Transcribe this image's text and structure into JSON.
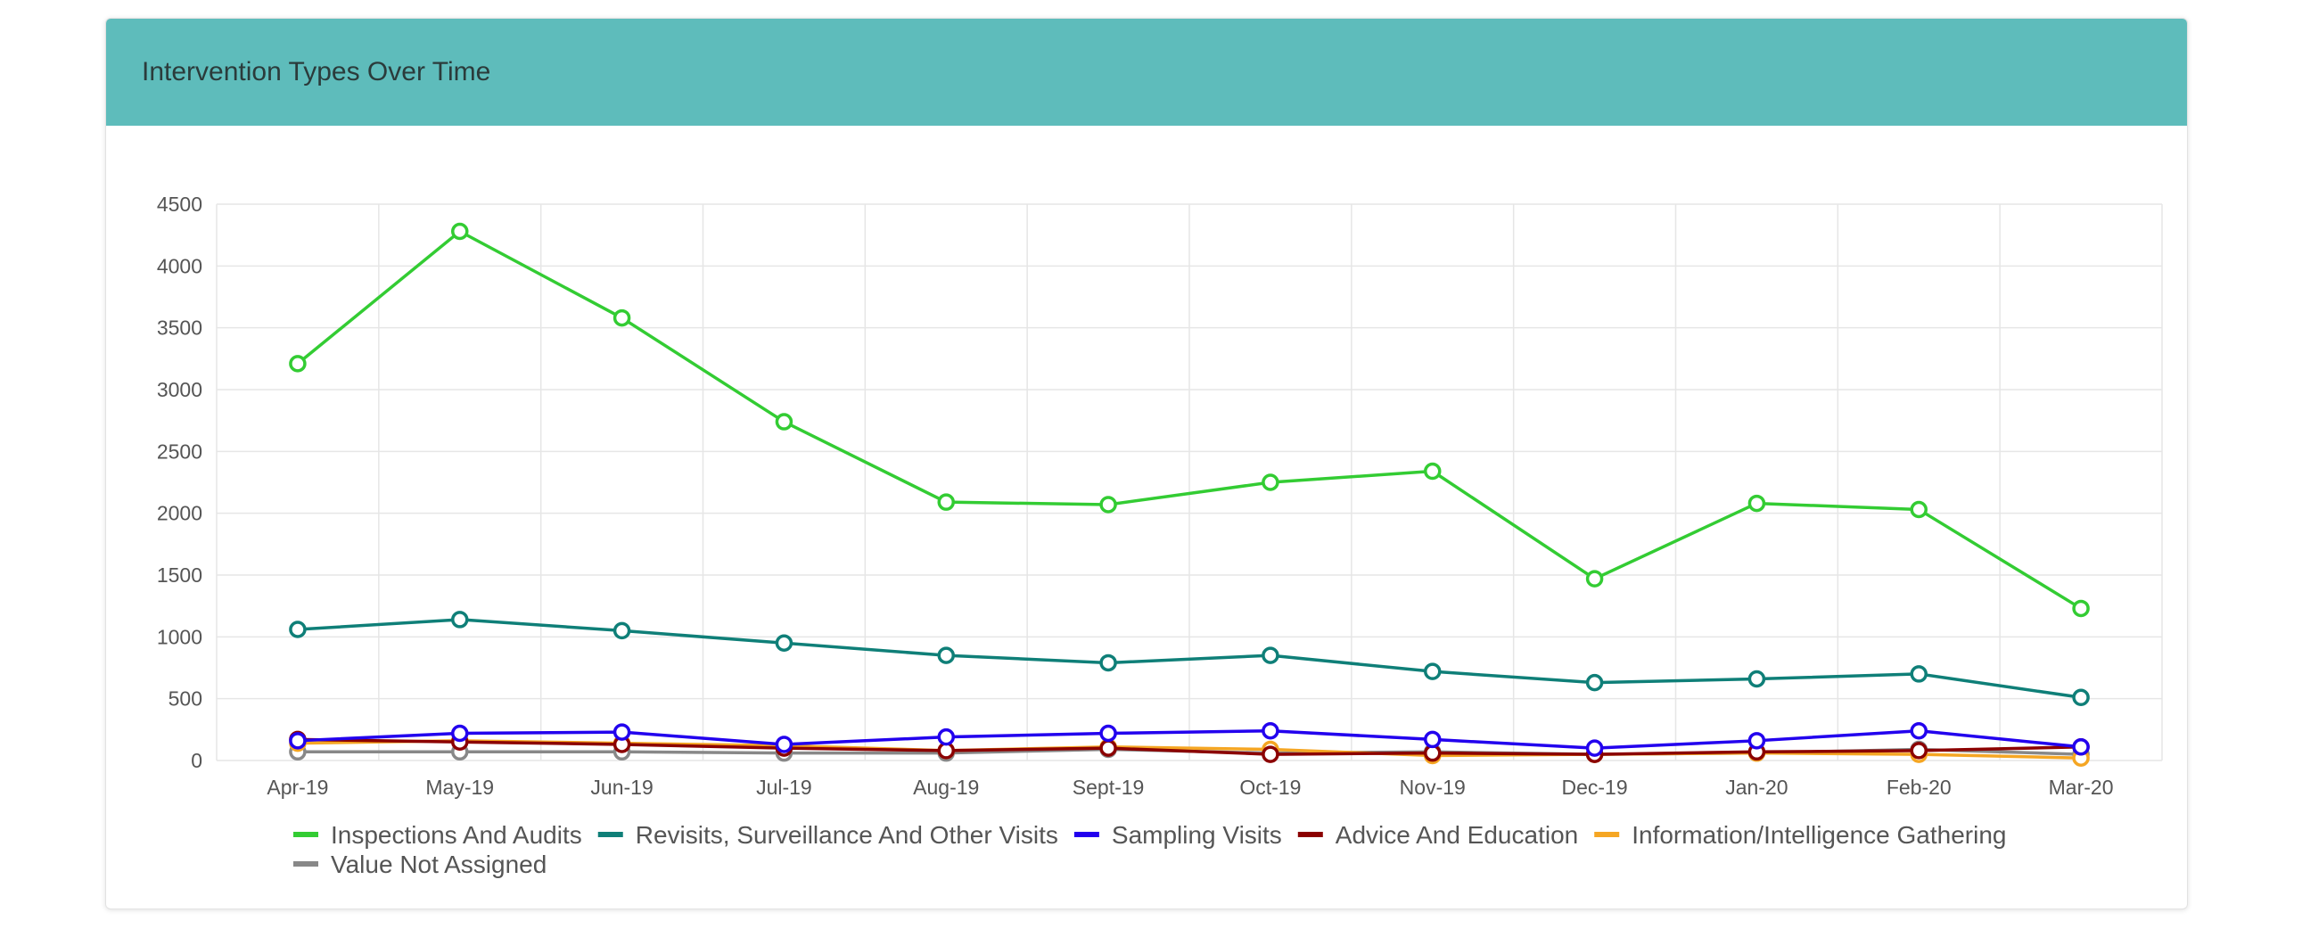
{
  "card": {
    "title": "Intervention Types Over Time"
  },
  "chart_data": {
    "type": "line",
    "title": "Intervention Types Over Time",
    "xlabel": "",
    "ylabel": "",
    "categories": [
      "Apr-19",
      "May-19",
      "Jun-19",
      "Jul-19",
      "Aug-19",
      "Sept-19",
      "Oct-19",
      "Nov-19",
      "Dec-19",
      "Jan-20",
      "Feb-20",
      "Mar-20"
    ],
    "ylim": [
      0,
      4500
    ],
    "yticks": [
      0,
      500,
      1000,
      1500,
      2000,
      2500,
      3000,
      3500,
      4000,
      4500
    ],
    "grid": true,
    "legend_position": "bottom",
    "series": [
      {
        "name": "Inspections And Audits",
        "color": "#33cc33",
        "values": [
          3210,
          4280,
          3580,
          2740,
          2090,
          2070,
          2250,
          2340,
          1470,
          2080,
          2030,
          1230
        ]
      },
      {
        "name": "Revisits, Surveillance And Other Visits",
        "color": "#0f7f78",
        "values": [
          1060,
          1140,
          1050,
          950,
          850,
          790,
          850,
          720,
          630,
          660,
          700,
          510
        ]
      },
      {
        "name": "Sampling Visits",
        "color": "#2200ee",
        "values": [
          160,
          220,
          230,
          130,
          190,
          220,
          240,
          170,
          100,
          160,
          240,
          110
        ]
      },
      {
        "name": "Advice And Education",
        "color": "#8b0000",
        "values": [
          170,
          150,
          130,
          100,
          80,
          100,
          50,
          60,
          50,
          70,
          80,
          110
        ]
      },
      {
        "name": "Information/Intelligence Gathering",
        "color": "#f5a623",
        "values": [
          140,
          160,
          140,
          120,
          80,
          110,
          90,
          40,
          50,
          60,
          50,
          20
        ]
      },
      {
        "name": "Value Not Assigned",
        "color": "#888888",
        "values": [
          70,
          70,
          70,
          60,
          60,
          90,
          60,
          70,
          50,
          60,
          90,
          50
        ]
      }
    ]
  }
}
